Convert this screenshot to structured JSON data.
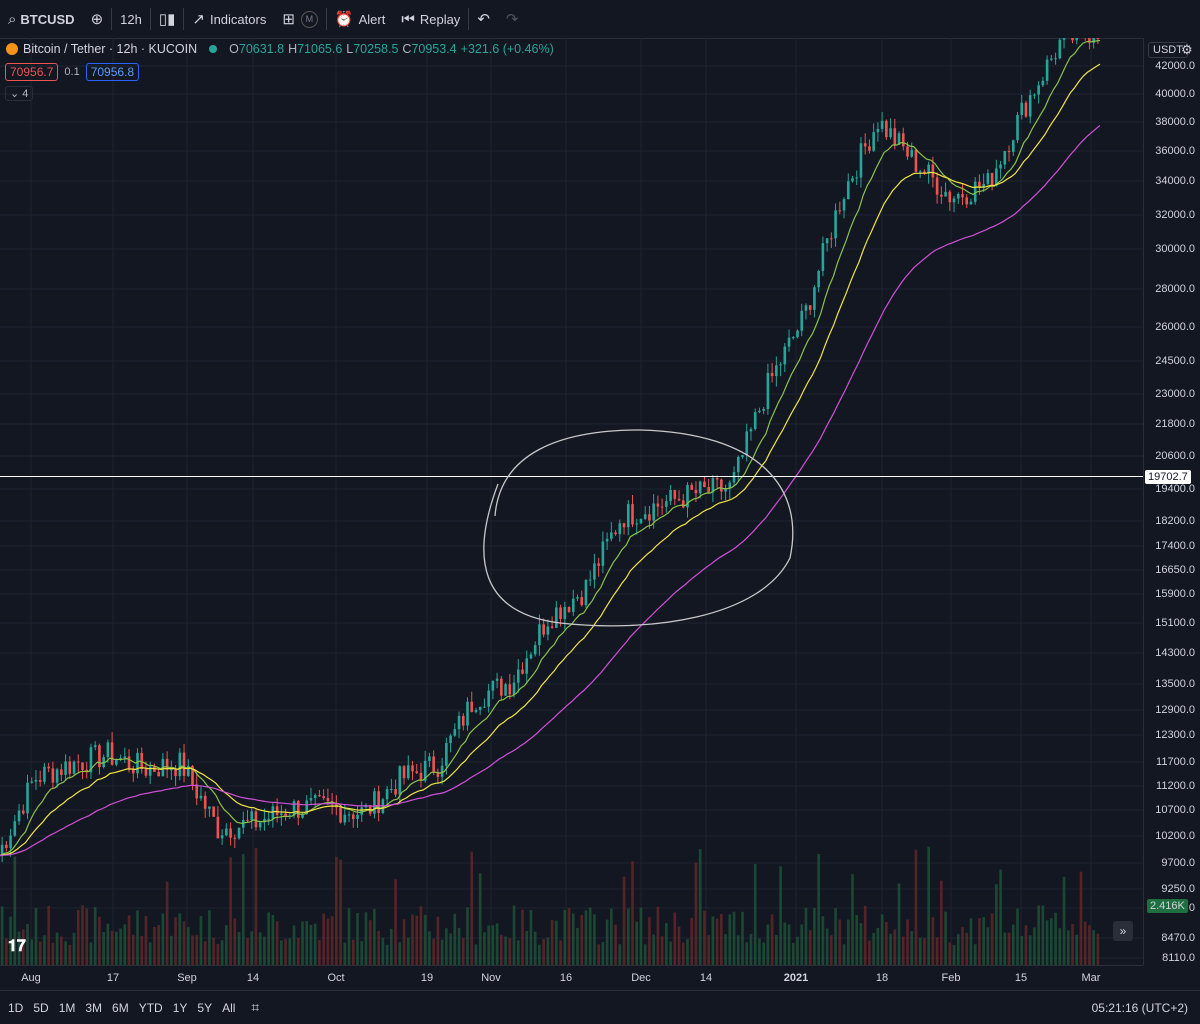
{
  "toolbar": {
    "symbol": "BTCUSD",
    "interval": "12h",
    "indicators_label": "Indicators",
    "templates_badge": "M",
    "alert_label": "Alert",
    "replay_label": "Replay"
  },
  "legend": {
    "title": "Bitcoin / Tether · 12h · KUCOIN",
    "open_label": "O",
    "open": "70631.8",
    "high_label": "H",
    "high": "71065.6",
    "low_label": "L",
    "low": "70258.5",
    "close_label": "C",
    "close": "70953.4",
    "change": "+321.6 (+0.46%)",
    "bid": "70956.7",
    "spread": "0.1",
    "ask": "70956.8",
    "collapse_count": "4"
  },
  "price_axis": {
    "currency": "USDT",
    "ticks": [
      "42000.0",
      "40000.0",
      "38000.0",
      "36000.0",
      "34000.0",
      "32000.0",
      "30000.0",
      "28000.0",
      "26000.0",
      "24500.0",
      "23000.0",
      "21800.0",
      "20600.0",
      "19400.0",
      "18200.0",
      "17400.0",
      "16650.0",
      "15900.0",
      "15100.0",
      "14300.0",
      "13500.0",
      "12900.0",
      "12300.0",
      "11700.0",
      "11200.0",
      "10700.0",
      "10200.0",
      "9700.0",
      "9250.0",
      "8830.0",
      "8470.0",
      "8110.0"
    ],
    "hline_label": "19702.7",
    "volume_label": "2.416K"
  },
  "time_axis": {
    "ticks": [
      "Aug",
      "17",
      "Sep",
      "14",
      "Oct",
      "19",
      "Nov",
      "16",
      "Dec",
      "14",
      "2021",
      "18",
      "Feb",
      "15",
      "Mar"
    ]
  },
  "bottom_bar": {
    "ranges": [
      "1D",
      "5D",
      "1M",
      "3M",
      "6M",
      "YTD",
      "1Y",
      "5Y",
      "All"
    ],
    "clock": "05:21:16 (UTC+2)"
  },
  "colors": {
    "background": "#131722",
    "up": "#26a69a",
    "down": "#ef5350",
    "ema_fast": "#8bc34a",
    "ema_mid": "#f0e442",
    "ema_slow": "#d050d8"
  },
  "chart_data": {
    "type": "candlestick",
    "symbol": "Bitcoin / Tether",
    "interval": "12h",
    "exchange": "KUCOIN",
    "y_scale": "log",
    "ylim": [
      8110,
      43000
    ],
    "x": [
      "2020-07-27",
      "2020-08-03",
      "2020-08-10",
      "2020-08-17",
      "2020-08-24",
      "2020-08-31",
      "2020-09-07",
      "2020-09-14",
      "2020-09-21",
      "2020-09-28",
      "2020-10-05",
      "2020-10-12",
      "2020-10-19",
      "2020-10-26",
      "2020-11-02",
      "2020-11-09",
      "2020-11-16",
      "2020-11-23",
      "2020-11-30",
      "2020-12-07",
      "2020-12-14",
      "2020-12-21",
      "2020-12-28",
      "2021-01-04",
      "2021-01-11",
      "2021-01-18",
      "2021-01-25",
      "2021-02-01",
      "2021-02-08",
      "2021-02-15",
      "2021-02-22"
    ],
    "close": [
      9800,
      11300,
      11600,
      11800,
      11500,
      11600,
      10300,
      10400,
      10700,
      10700,
      10600,
      11300,
      11600,
      13100,
      13500,
      15200,
      16000,
      18300,
      18700,
      19100,
      19300,
      23300,
      26500,
      33000,
      38000,
      35200,
      33000,
      33800,
      39000,
      44000,
      45000
    ],
    "horizontal_line": 19702.7
  }
}
